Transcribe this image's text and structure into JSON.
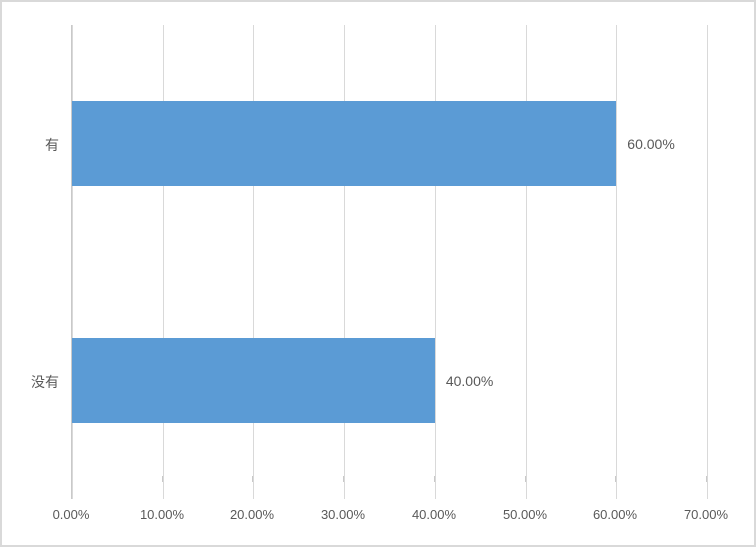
{
  "chart": {
    "bar_color": "#5B9BD5",
    "gridline_color": "#D9D9D9",
    "axis_line_color": "#C9C9C9",
    "text_color": "#595959",
    "border_color": "#D9D9D9",
    "background": "#FFFFFF"
  },
  "chart_data": {
    "type": "bar",
    "orientation": "horizontal",
    "title": "",
    "xlabel": "",
    "ylabel": "",
    "categories": [
      "有",
      "没有"
    ],
    "values": [
      60.0,
      40.0
    ],
    "data_labels": [
      "60.00%",
      "40.00%"
    ],
    "x_tick_labels": [
      "0.00%",
      "10.00%",
      "20.00%",
      "30.00%",
      "40.00%",
      "50.00%",
      "60.00%",
      "70.00%"
    ],
    "xlim": [
      0,
      70
    ],
    "x_tick_step": 10,
    "grid": true,
    "legend_position": "none"
  }
}
